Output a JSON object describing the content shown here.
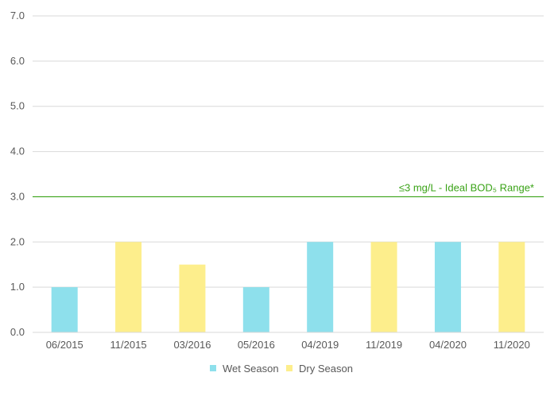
{
  "chart_data": {
    "type": "bar",
    "categories": [
      "06/2015",
      "11/2015",
      "03/2016",
      "05/2016",
      "04/2019",
      "11/2019",
      "04/2020",
      "11/2020"
    ],
    "series": [
      {
        "name": "Wet Season",
        "color": "#8ee0ec",
        "values": [
          1.0,
          null,
          null,
          1.0,
          2.0,
          null,
          2.0,
          null
        ]
      },
      {
        "name": "Dry Season",
        "color": "#fdee8c",
        "values": [
          null,
          2.0,
          1.5,
          null,
          null,
          2.0,
          null,
          2.0
        ]
      }
    ],
    "ylim": [
      0,
      7
    ],
    "yticks": [
      "0.0",
      "1.0",
      "2.0",
      "3.0",
      "4.0",
      "5.0",
      "6.0",
      "7.0"
    ],
    "reference_line": {
      "value": 3.0,
      "label": "≤3 mg/L - Ideal BOD₅ Range*",
      "color": "#3aa317"
    },
    "grid": true,
    "legend_position": "bottom",
    "title": "",
    "xlabel": "",
    "ylabel": ""
  }
}
